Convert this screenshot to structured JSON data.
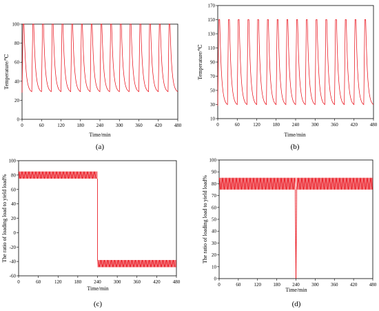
{
  "chart_data": [
    {
      "id": "a",
      "type": "line",
      "panel_label": "(a)",
      "xlabel": "Time/min",
      "ylabel": "Temperature/℃",
      "xlim": [
        0,
        480
      ],
      "ylim": [
        0,
        100
      ],
      "xticks": [
        0,
        60,
        120,
        180,
        240,
        300,
        360,
        420,
        480
      ],
      "yticks": [
        0,
        20,
        40,
        60,
        80,
        100
      ],
      "series_color": "#e8000b",
      "cycle": {
        "period_min": 30,
        "max": 100,
        "min": 28,
        "count": 16,
        "start_value": 28
      }
    },
    {
      "id": "b",
      "type": "line",
      "panel_label": "(b)",
      "xlabel": "Time/min",
      "ylabel": "Temperature/℃",
      "xlim": [
        0,
        480
      ],
      "ylim": [
        10,
        170
      ],
      "xticks": [
        0,
        60,
        120,
        180,
        240,
        300,
        360,
        420,
        480
      ],
      "yticks": [
        10,
        30,
        50,
        70,
        90,
        110,
        130,
        150,
        170
      ],
      "series_color": "#e8000b",
      "cycle": {
        "period_min": 30,
        "max": 150,
        "min": 28,
        "count": 16,
        "start_value": 28
      }
    },
    {
      "id": "c",
      "type": "line",
      "panel_label": "(c)",
      "xlabel": "Time/min",
      "ylabel": "The ratio of loading load to yield load%",
      "xlim": [
        0,
        480
      ],
      "ylim": [
        -60,
        100
      ],
      "xticks": [
        0,
        60,
        120,
        180,
        240,
        300,
        360,
        420,
        480
      ],
      "yticks": [
        -60,
        -40,
        -20,
        0,
        20,
        40,
        60,
        80,
        100
      ],
      "series_color": "#e8000b",
      "bands": [
        {
          "x_start": 0,
          "x_end": 240,
          "low": 75,
          "high": 85
        },
        {
          "x_start": 240,
          "x_end": 480,
          "low": -48,
          "high": -38
        }
      ]
    },
    {
      "id": "d",
      "type": "line",
      "panel_label": "(d)",
      "xlabel": "Time/min",
      "ylabel": "The ratio of loading load to yield load%",
      "xlim": [
        0,
        480
      ],
      "ylim": [
        0,
        100
      ],
      "xticks": [
        0,
        60,
        120,
        180,
        240,
        300,
        360,
        420,
        480
      ],
      "yticks": [
        0,
        10,
        20,
        30,
        40,
        50,
        60,
        70,
        80,
        90,
        100
      ],
      "series_color": "#e8000b",
      "bands": [
        {
          "x_start": 0,
          "x_end": 480,
          "low": 75,
          "high": 85
        }
      ],
      "spike": {
        "x": 240,
        "value": 0
      }
    }
  ]
}
